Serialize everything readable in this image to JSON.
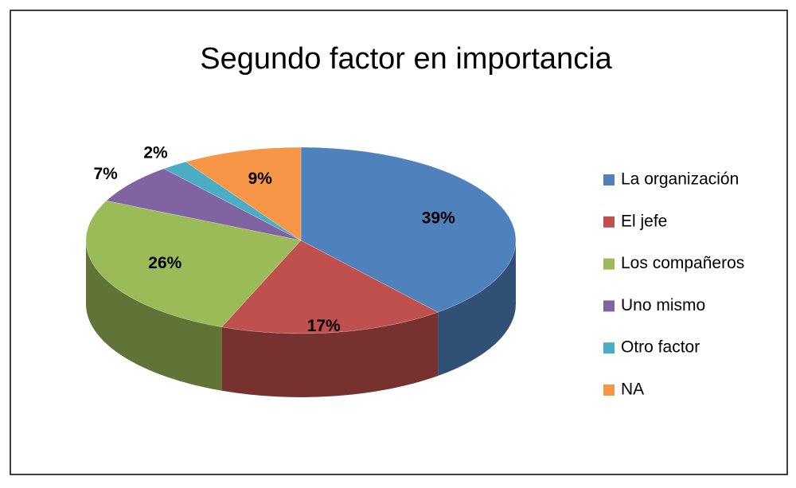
{
  "chart_data": {
    "type": "pie",
    "title": "Segundo factor en importancia",
    "categories": [
      "La organización",
      "El jefe",
      "Los compañeros",
      "Uno mismo",
      "Otro factor",
      "NA"
    ],
    "values": [
      39,
      17,
      26,
      7,
      2,
      9
    ],
    "value_labels": [
      "39%",
      "17%",
      "26%",
      "7%",
      "2%",
      "9%"
    ],
    "colors": [
      "#4f81bd",
      "#c0504d",
      "#9bbb59",
      "#8064a2",
      "#4bacc6",
      "#f79646"
    ],
    "legend": "right"
  }
}
